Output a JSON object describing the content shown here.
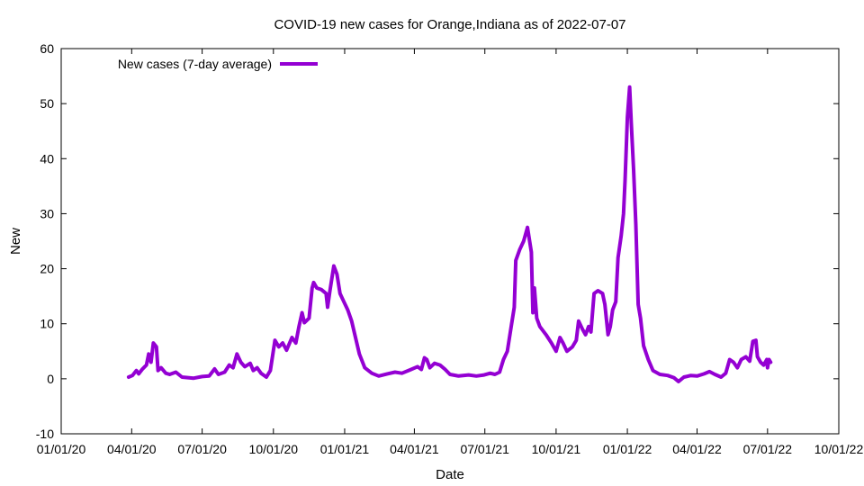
{
  "chart_data": {
    "type": "line",
    "title": "COVID-19 new cases for Orange,Indiana as of 2022-07-07",
    "xlabel": "Date",
    "ylabel": "New",
    "xlim": [
      "2020-01-01",
      "2022-10-01"
    ],
    "ylim": [
      -10,
      60
    ],
    "x_ticks": [
      "01/01/20",
      "04/01/20",
      "07/01/20",
      "10/01/20",
      "01/01/21",
      "04/01/21",
      "07/01/21",
      "10/01/21",
      "01/01/22",
      "04/01/22",
      "07/01/22",
      "10/01/22"
    ],
    "x_tick_dates": [
      "2020-01-01",
      "2020-04-01",
      "2020-07-01",
      "2020-10-01",
      "2021-01-01",
      "2021-04-01",
      "2021-07-01",
      "2021-10-01",
      "2022-01-01",
      "2022-04-01",
      "2022-07-01",
      "2022-10-01"
    ],
    "y_ticks": [
      "-10",
      "0",
      "10",
      "20",
      "30",
      "40",
      "50",
      "60"
    ],
    "grid": false,
    "legend_position": "top-left",
    "series": [
      {
        "name": "New cases (7-day average)",
        "color": "#9400d3",
        "points": [
          [
            "2020-03-28",
            0.3
          ],
          [
            "2020-04-02",
            0.6
          ],
          [
            "2020-04-07",
            1.5
          ],
          [
            "2020-04-10",
            0.9
          ],
          [
            "2020-04-15",
            1.8
          ],
          [
            "2020-04-20",
            2.5
          ],
          [
            "2020-04-23",
            4.5
          ],
          [
            "2020-04-26",
            3.0
          ],
          [
            "2020-04-29",
            6.5
          ],
          [
            "2020-05-03",
            5.8
          ],
          [
            "2020-05-05",
            1.5
          ],
          [
            "2020-05-09",
            2.0
          ],
          [
            "2020-05-15",
            1.0
          ],
          [
            "2020-05-20",
            0.8
          ],
          [
            "2020-05-28",
            1.2
          ],
          [
            "2020-06-05",
            0.3
          ],
          [
            "2020-06-20",
            0.1
          ],
          [
            "2020-07-01",
            0.4
          ],
          [
            "2020-07-10",
            0.5
          ],
          [
            "2020-07-17",
            1.8
          ],
          [
            "2020-07-22",
            0.8
          ],
          [
            "2020-07-30",
            1.2
          ],
          [
            "2020-08-05",
            2.5
          ],
          [
            "2020-08-10",
            2.0
          ],
          [
            "2020-08-15",
            4.5
          ],
          [
            "2020-08-20",
            3.0
          ],
          [
            "2020-08-25",
            2.2
          ],
          [
            "2020-09-01",
            2.8
          ],
          [
            "2020-09-05",
            1.5
          ],
          [
            "2020-09-10",
            2.0
          ],
          [
            "2020-09-15",
            1.0
          ],
          [
            "2020-09-22",
            0.3
          ],
          [
            "2020-09-27",
            1.5
          ],
          [
            "2020-10-03",
            7.0
          ],
          [
            "2020-10-08",
            5.8
          ],
          [
            "2020-10-13",
            6.5
          ],
          [
            "2020-10-18",
            5.2
          ],
          [
            "2020-10-25",
            7.5
          ],
          [
            "2020-10-30",
            6.5
          ],
          [
            "2020-11-03",
            9.5
          ],
          [
            "2020-11-07",
            12.0
          ],
          [
            "2020-11-10",
            10.2
          ],
          [
            "2020-11-16",
            11.0
          ],
          [
            "2020-11-20",
            16.5
          ],
          [
            "2020-11-22",
            17.5
          ],
          [
            "2020-11-26",
            16.5
          ],
          [
            "2020-12-02",
            16.2
          ],
          [
            "2020-12-08",
            15.5
          ],
          [
            "2020-12-10",
            13.0
          ],
          [
            "2020-12-13",
            16.0
          ],
          [
            "2020-12-18",
            20.5
          ],
          [
            "2020-12-22",
            19.0
          ],
          [
            "2020-12-26",
            15.5
          ],
          [
            "2020-12-31",
            14.0
          ],
          [
            "2021-01-05",
            12.5
          ],
          [
            "2021-01-10",
            10.5
          ],
          [
            "2021-01-15",
            7.5
          ],
          [
            "2021-01-20",
            4.5
          ],
          [
            "2021-01-27",
            2.0
          ],
          [
            "2021-02-05",
            1.0
          ],
          [
            "2021-02-14",
            0.5
          ],
          [
            "2021-02-25",
            0.9
          ],
          [
            "2021-03-07",
            1.2
          ],
          [
            "2021-03-16",
            1.0
          ],
          [
            "2021-03-26",
            1.6
          ],
          [
            "2021-04-05",
            2.2
          ],
          [
            "2021-04-10",
            1.7
          ],
          [
            "2021-04-14",
            3.8
          ],
          [
            "2021-04-17",
            3.5
          ],
          [
            "2021-04-21",
            2.0
          ],
          [
            "2021-04-27",
            2.8
          ],
          [
            "2021-05-04",
            2.5
          ],
          [
            "2021-05-10",
            1.8
          ],
          [
            "2021-05-17",
            0.8
          ],
          [
            "2021-05-28",
            0.5
          ],
          [
            "2021-06-10",
            0.7
          ],
          [
            "2021-06-20",
            0.5
          ],
          [
            "2021-06-30",
            0.7
          ],
          [
            "2021-07-08",
            1.0
          ],
          [
            "2021-07-14",
            0.8
          ],
          [
            "2021-07-20",
            1.2
          ],
          [
            "2021-07-25",
            3.5
          ],
          [
            "2021-07-30",
            5.0
          ],
          [
            "2021-08-04",
            9.5
          ],
          [
            "2021-08-08",
            13.0
          ],
          [
            "2021-08-10",
            21.5
          ],
          [
            "2021-08-15",
            23.5
          ],
          [
            "2021-08-20",
            25.0
          ],
          [
            "2021-08-25",
            27.5
          ],
          [
            "2021-08-30",
            23.0
          ],
          [
            "2021-09-01",
            12.0
          ],
          [
            "2021-09-03",
            16.5
          ],
          [
            "2021-09-06",
            11.0
          ],
          [
            "2021-09-10",
            9.5
          ],
          [
            "2021-09-18",
            8.0
          ],
          [
            "2021-09-25",
            6.5
          ],
          [
            "2021-10-01",
            5.0
          ],
          [
            "2021-10-06",
            7.5
          ],
          [
            "2021-10-10",
            6.5
          ],
          [
            "2021-10-15",
            5.0
          ],
          [
            "2021-10-22",
            5.8
          ],
          [
            "2021-10-27",
            7.0
          ],
          [
            "2021-10-30",
            10.5
          ],
          [
            "2021-11-04",
            9.0
          ],
          [
            "2021-11-08",
            8.0
          ],
          [
            "2021-11-12",
            9.5
          ],
          [
            "2021-11-15",
            8.5
          ],
          [
            "2021-11-19",
            15.5
          ],
          [
            "2021-11-24",
            16.0
          ],
          [
            "2021-11-30",
            15.5
          ],
          [
            "2021-12-03",
            13.5
          ],
          [
            "2021-12-07",
            8.0
          ],
          [
            "2021-12-10",
            9.5
          ],
          [
            "2021-12-13",
            12.5
          ],
          [
            "2021-12-17",
            14.0
          ],
          [
            "2021-12-20",
            22.0
          ],
          [
            "2021-12-24",
            26.0
          ],
          [
            "2021-12-27",
            30.0
          ],
          [
            "2021-12-29",
            36.0
          ],
          [
            "2022-01-01",
            47.5
          ],
          [
            "2022-01-04",
            53.0
          ],
          [
            "2022-01-06",
            46.5
          ],
          [
            "2022-01-09",
            38.0
          ],
          [
            "2022-01-12",
            28.0
          ],
          [
            "2022-01-15",
            13.5
          ],
          [
            "2022-01-18",
            11.0
          ],
          [
            "2022-01-22",
            6.0
          ],
          [
            "2022-01-28",
            3.5
          ],
          [
            "2022-02-03",
            1.5
          ],
          [
            "2022-02-12",
            0.8
          ],
          [
            "2022-02-22",
            0.6
          ],
          [
            "2022-03-02",
            0.2
          ],
          [
            "2022-03-08",
            -0.5
          ],
          [
            "2022-03-15",
            0.3
          ],
          [
            "2022-03-24",
            0.6
          ],
          [
            "2022-04-01",
            0.5
          ],
          [
            "2022-04-10",
            0.9
          ],
          [
            "2022-04-17",
            1.3
          ],
          [
            "2022-04-24",
            0.8
          ],
          [
            "2022-05-02",
            0.3
          ],
          [
            "2022-05-08",
            1.0
          ],
          [
            "2022-05-13",
            3.5
          ],
          [
            "2022-05-18",
            3.0
          ],
          [
            "2022-05-23",
            2.0
          ],
          [
            "2022-05-28",
            3.5
          ],
          [
            "2022-06-03",
            4.0
          ],
          [
            "2022-06-08",
            3.2
          ],
          [
            "2022-06-12",
            6.8
          ],
          [
            "2022-06-16",
            7.0
          ],
          [
            "2022-06-18",
            4.0
          ],
          [
            "2022-06-22",
            3.0
          ],
          [
            "2022-06-26",
            2.5
          ],
          [
            "2022-06-30",
            3.5
          ],
          [
            "2022-07-01",
            2.0
          ],
          [
            "2022-07-03",
            3.5
          ],
          [
            "2022-07-05",
            3.0
          ]
        ]
      }
    ]
  }
}
